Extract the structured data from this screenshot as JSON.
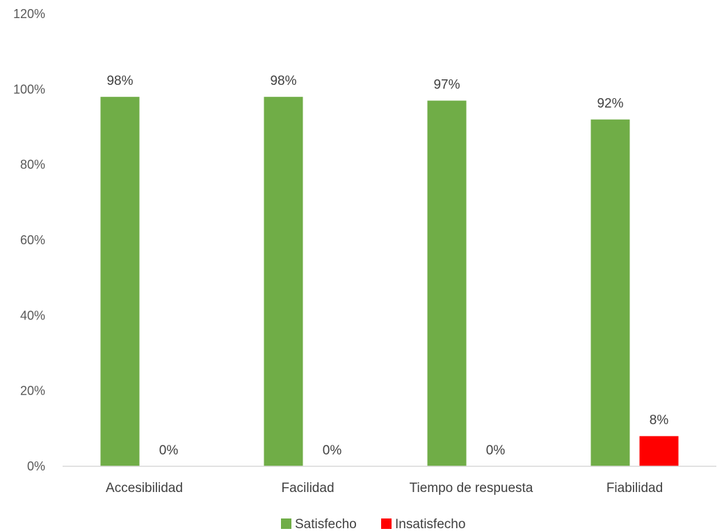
{
  "chart_data": {
    "type": "bar",
    "categories": [
      "Accesibilidad",
      "Facilidad",
      "Tiempo de respuesta",
      "Fiabilidad"
    ],
    "series": [
      {
        "name": "Satisfecho",
        "values": [
          98,
          98,
          97,
          92
        ],
        "color": "#70AD47"
      },
      {
        "name": "Insatisfecho",
        "values": [
          0,
          0,
          0,
          8
        ],
        "color": "#FF0000"
      }
    ],
    "data_labels": [
      [
        "98%",
        "98%",
        "97%",
        "92%"
      ],
      [
        "0%",
        "0%",
        "0%",
        "8%"
      ]
    ],
    "yticks": [
      "0%",
      "20%",
      "40%",
      "60%",
      "80%",
      "100%",
      "120%"
    ],
    "ylim": [
      0,
      120
    ],
    "grid": false,
    "legend_position": "bottom"
  }
}
